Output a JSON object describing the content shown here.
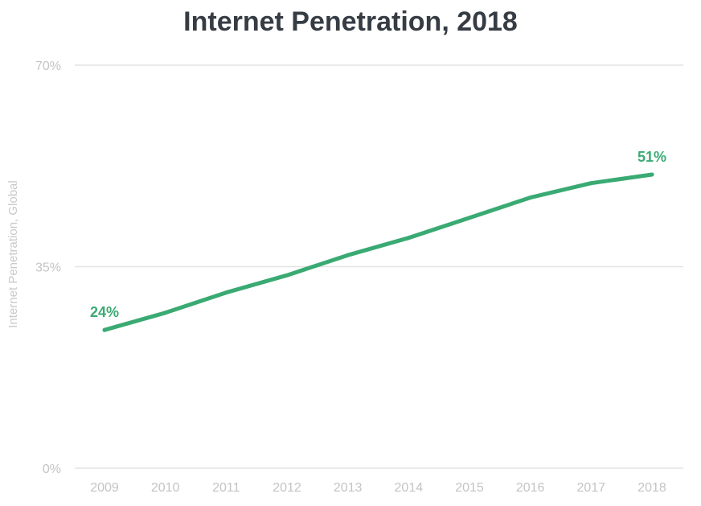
{
  "chart_data": {
    "type": "line",
    "title": "Internet Penetration, 2018",
    "xlabel": "",
    "ylabel": "Internet Penetration, Global",
    "ylim": [
      0,
      70
    ],
    "yticks": [
      0,
      35,
      70
    ],
    "ytick_labels": [
      "0%",
      "35%",
      "70%"
    ],
    "grid": true,
    "categories": [
      "2009",
      "2010",
      "2011",
      "2012",
      "2013",
      "2014",
      "2015",
      "2016",
      "2017",
      "2018"
    ],
    "series": [
      {
        "name": "Internet Penetration, Global",
        "color": "#3aaa73",
        "values": [
          24,
          27,
          30.5,
          33.5,
          37,
          40,
          43.5,
          47,
          49.5,
          51
        ]
      }
    ],
    "annotations": [
      {
        "index": 0,
        "text": "24%"
      },
      {
        "index": 9,
        "text": "51%"
      }
    ]
  }
}
